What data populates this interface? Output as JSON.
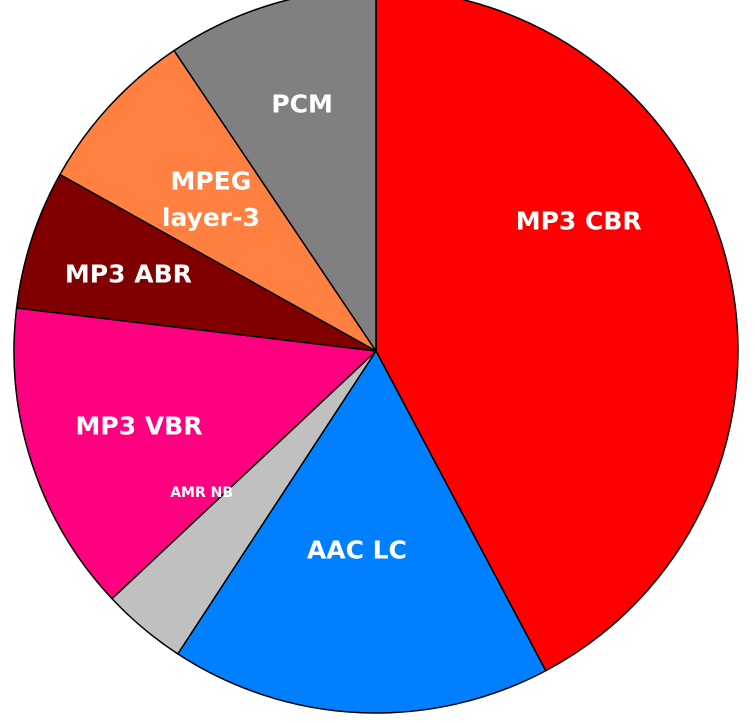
{
  "chart_data": {
    "type": "pie",
    "title": "",
    "start_angle_deg": 0,
    "direction": "clockwise",
    "slices": [
      {
        "label": "MP3 CBR",
        "label_lines": [
          "MP3 CBR"
        ],
        "value": 43.5,
        "color": "#ff0000"
      },
      {
        "label": "AAC LC",
        "label_lines": [
          "AAC LC"
        ],
        "value": 17.5,
        "color": "#0080ff"
      },
      {
        "label": "",
        "label_lines": [],
        "value": 3.9,
        "color": "#c0c0c0"
      },
      {
        "label": "AMR NB",
        "label_lines": [
          "AMR NB"
        ],
        "value": 0.0,
        "color": "#c0c0c0"
      },
      {
        "label": "MP3 VBR",
        "label_lines": [
          "MP3 VBR"
        ],
        "value": 14.3,
        "color": "#ff0080"
      },
      {
        "label": "MP3 ABR",
        "label_lines": [
          "MP3 ABR"
        ],
        "value": 6.4,
        "color": "#800000"
      },
      {
        "label": "MPEG layer-3",
        "label_lines": [
          "MPEG",
          "layer-3"
        ],
        "value": 7.7,
        "color": "#ff8040"
      },
      {
        "label": "PCM",
        "label_lines": [
          "PCM"
        ],
        "value": 9.7,
        "color": "#808080"
      }
    ]
  }
}
